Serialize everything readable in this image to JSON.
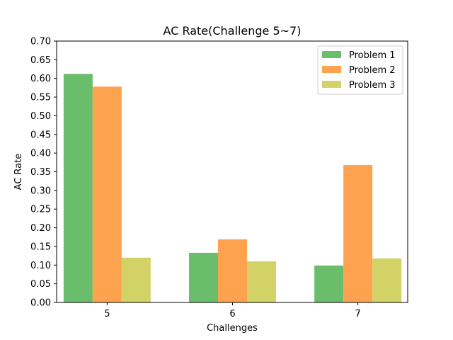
{
  "chart_data": {
    "type": "bar",
    "title": "AC Rate(Challenge 5~7)",
    "xlabel": "Challenges",
    "ylabel": "AC Rate",
    "categories": [
      "5",
      "6",
      "7"
    ],
    "ylim": [
      0,
      0.7
    ],
    "yticks": [
      "0.00",
      "0.05",
      "0.10",
      "0.15",
      "0.20",
      "0.25",
      "0.30",
      "0.35",
      "0.40",
      "0.45",
      "0.50",
      "0.55",
      "0.60",
      "0.65",
      "0.70"
    ],
    "legend_position": "top-right",
    "grid": false,
    "series": [
      {
        "name": "Problem 1",
        "color": "#6abd6a",
        "values": [
          0.612,
          0.133,
          0.099
        ]
      },
      {
        "name": "Problem 2",
        "color": "#fda350",
        "values": [
          0.578,
          0.169,
          0.368
        ]
      },
      {
        "name": "Problem 3",
        "color": "#d2d266",
        "values": [
          0.12,
          0.11,
          0.118
        ]
      }
    ]
  }
}
